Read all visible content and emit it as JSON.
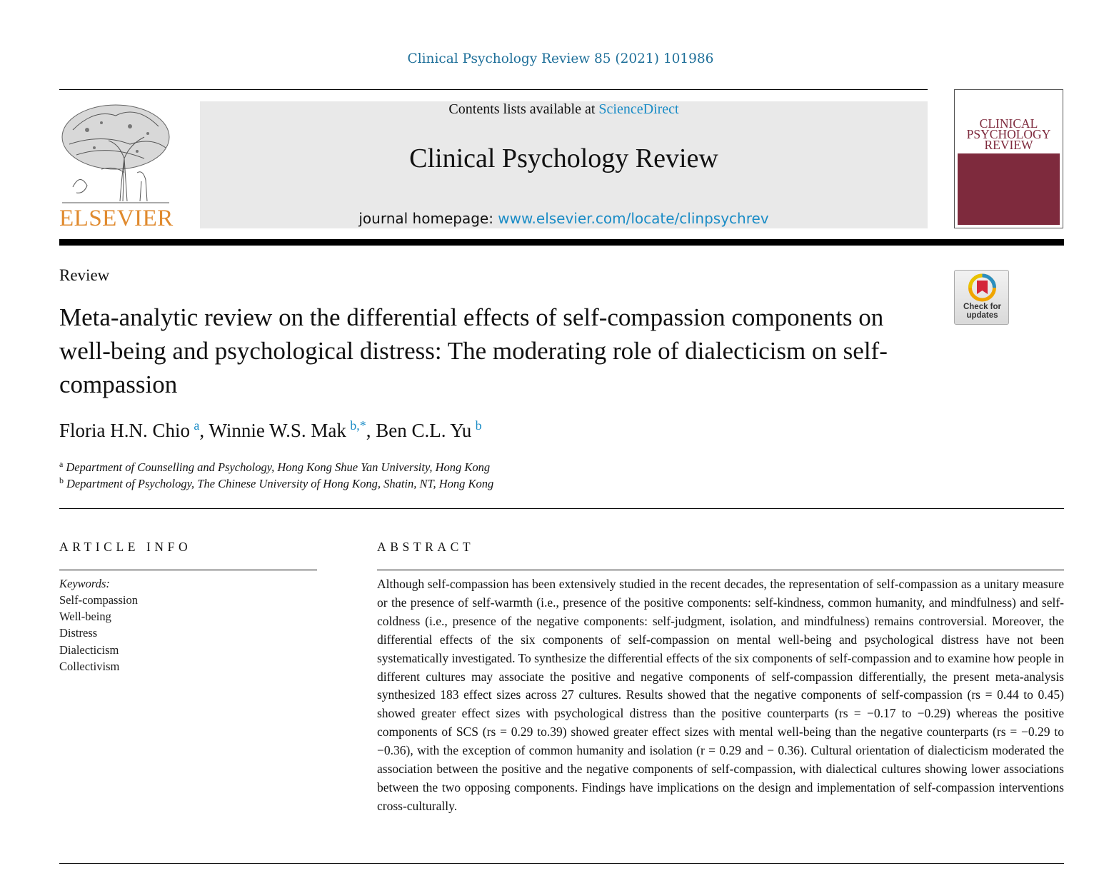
{
  "citation": "Clinical Psychology Review 85 (2021) 101986",
  "publisher": "ELSEVIER",
  "banner": {
    "contents_prefix": "Contents lists available at ",
    "contents_link": "ScienceDirect",
    "journal_name": "Clinical Psychology Review",
    "homepage_prefix": "journal homepage: ",
    "homepage_url": "www.elsevier.com/locate/clinpsychrev"
  },
  "cover": {
    "title_line1": "CLINICAL",
    "title_line2": "PSYCHOLOGY",
    "title_line3": "REVIEW"
  },
  "article_type": "Review",
  "check_updates": {
    "line1": "Check for",
    "line2": "updates"
  },
  "title": "Meta-analytic review on the differential effects of self-compassion components on well-being and psychological distress: The moderating role of dialecticism on self-compassion",
  "authors": [
    {
      "name": "Floria H.N. Chio",
      "sup": "a",
      "sep": ", "
    },
    {
      "name": "Winnie W.S. Mak",
      "sup": "b,*",
      "sep": ", "
    },
    {
      "name": "Ben C.L. Yu",
      "sup": "b",
      "sep": ""
    }
  ],
  "affiliations": [
    {
      "mark": "a",
      "text": "Department of Counselling and Psychology, Hong Kong Shue Yan University, Hong Kong"
    },
    {
      "mark": "b",
      "text": "Department of Psychology, The Chinese University of Hong Kong, Shatin, NT, Hong Kong"
    }
  ],
  "article_info": {
    "heading": "ARTICLE INFO",
    "keywords_label": "Keywords:",
    "keywords": [
      "Self-compassion",
      "Well-being",
      "Distress",
      "Dialecticism",
      "Collectivism"
    ]
  },
  "abstract": {
    "heading": "ABSTRACT",
    "text": "Although self-compassion has been extensively studied in the recent decades, the representation of self-compassion as a unitary measure or the presence of self-warmth (i.e., presence of the positive components: self-kindness, common humanity, and mindfulness) and self-coldness (i.e., presence of the negative components: self-judgment, isolation, and mindfulness) remains controversial. Moreover, the differential effects of the six components of self-compassion on mental well-being and psychological distress have not been systematically investigated. To synthesize the differential effects of the six components of self-compassion and to examine how people in different cultures may associate the positive and negative components of self-compassion differentially, the present meta-analysis synthesized 183 effect sizes across 27 cultures. Results showed that the negative components of self-compassion (rs = 0.44 to 0.45) showed greater effect sizes with psychological distress than the positive counterparts (rs = −0.17 to −0.29) whereas the positive components of SCS (rs = 0.29 to.39) showed greater effect sizes with mental well-being than the negative counterparts (rs = −0.29 to −0.36), with the exception of common humanity and isolation (r = 0.29 and − 0.36). Cultural orientation of dialecticism moderated the association between the positive and the negative components of self-compassion, with dialectical cultures showing lower associations between the two opposing components. Findings have implications on the design and implementation of self-compassion interventions cross-culturally."
  }
}
